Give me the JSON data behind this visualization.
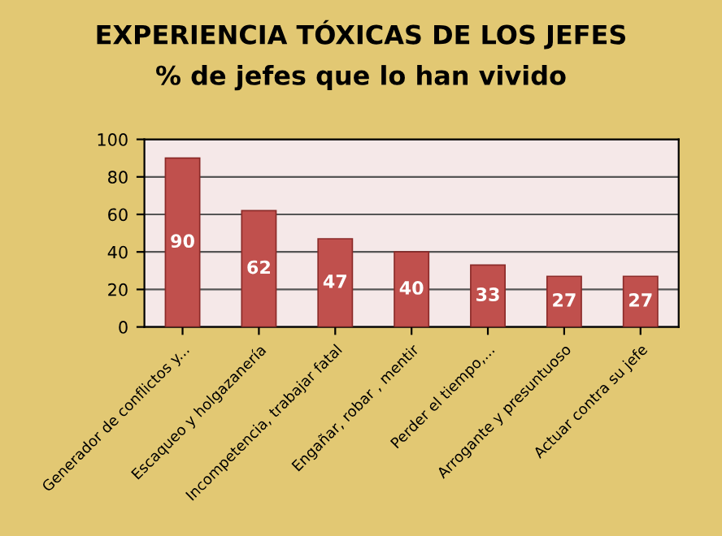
{
  "chart_data": {
    "type": "bar",
    "title": "EXPERIENCIA TÓXICAS DE LOS JEFES",
    "subtitle": "% de jefes que lo han vivido",
    "categories": [
      "Generador de conflictos y...",
      "Escaqueo y holgazanería",
      "Incompetencia, trabajar fatal",
      "Engañar, robar , mentir",
      "Perder el tiempo,...",
      "Arrogante y presuntuoso",
      "Actuar contra su jefe"
    ],
    "values": [
      90,
      62,
      47,
      40,
      33,
      27,
      27
    ],
    "color": "#c0504d",
    "ylim": [
      0,
      100
    ],
    "yticks": [
      0,
      20,
      40,
      60,
      80,
      100
    ],
    "grid": "y",
    "data_labels": true
  }
}
